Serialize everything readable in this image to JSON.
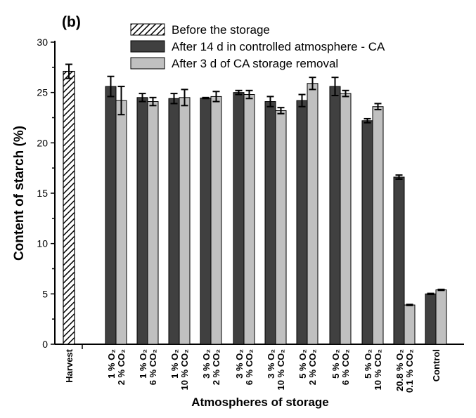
{
  "panel_label": "(b)",
  "chart_data": {
    "type": "bar",
    "title": "",
    "xlabel": "Atmospheres of storage",
    "ylabel": "Content of starch (%)",
    "ylim": [
      0,
      30
    ],
    "yticks": [
      0,
      5,
      10,
      15,
      20,
      25,
      30
    ],
    "grid": false,
    "legend_position": "top",
    "legend": [
      {
        "name": "Before the storage",
        "pattern": "hatch"
      },
      {
        "name": "After 14 d in controlled atmosphere - CA",
        "color": "#404040"
      },
      {
        "name": "After 3 d of CA storage removal",
        "color": "#c0c0c0"
      }
    ],
    "harvest": {
      "label": "Harvest",
      "value": 27.1,
      "error": 0.7
    },
    "categories": [
      [
        "1 % O₂",
        "2 % CO₂"
      ],
      [
        "1 % O₂",
        "6 % CO₂"
      ],
      [
        "1 % O₂",
        "10 % CO₂"
      ],
      [
        "3 % O₂",
        "2 % CO₂"
      ],
      [
        "3 % O₂",
        "6 % CO₂"
      ],
      [
        "3 % O₂",
        "10 % CO₂"
      ],
      [
        "5 % O₂",
        "2 % CO₂"
      ],
      [
        "5 % O₂",
        "6 % CO₂"
      ],
      [
        "5 % O₂",
        "10 % CO₂"
      ],
      [
        "20.8 % O₂",
        "0.1 % CO₂"
      ],
      [
        "Control"
      ]
    ],
    "series": [
      {
        "name": "After 14 d in controlled atmosphere - CA",
        "color": "#404040",
        "values": [
          25.6,
          24.5,
          24.4,
          24.45,
          25.0,
          24.1,
          24.2,
          25.6,
          22.2,
          16.6,
          5.0
        ],
        "errors": [
          1.0,
          0.4,
          0.5,
          0.05,
          0.2,
          0.5,
          0.6,
          0.9,
          0.2,
          0.2,
          0.05
        ]
      },
      {
        "name": "After 3 d of CA storage removal",
        "color": "#c0c0c0",
        "values": [
          24.2,
          24.1,
          24.5,
          24.6,
          24.8,
          23.2,
          25.9,
          24.9,
          23.6,
          3.9,
          5.4
        ],
        "errors": [
          1.4,
          0.4,
          0.8,
          0.5,
          0.4,
          0.3,
          0.6,
          0.3,
          0.3,
          0.05,
          0.05
        ]
      }
    ]
  }
}
